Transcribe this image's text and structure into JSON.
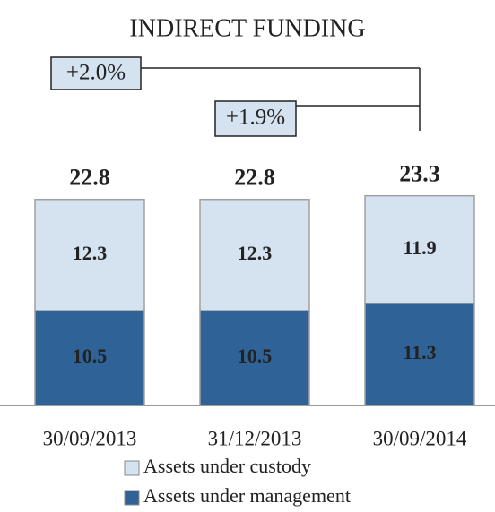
{
  "chart_data": {
    "type": "stacked_bar",
    "title": "INDIRECT FUNDING",
    "categories": [
      "30/09/2013",
      "31/12/2013",
      "30/09/2014"
    ],
    "series": [
      {
        "name": "Assets under management",
        "color": "#2f6398",
        "values": [
          10.5,
          10.5,
          11.3
        ]
      },
      {
        "name": "Assets under custody",
        "color": "#d5e2f0",
        "values": [
          12.3,
          12.3,
          11.9
        ]
      }
    ],
    "totals": [
      22.8,
      22.8,
      23.3
    ],
    "annotations": [
      "+2.0%",
      "+1.9%"
    ],
    "legend": "bottom"
  }
}
